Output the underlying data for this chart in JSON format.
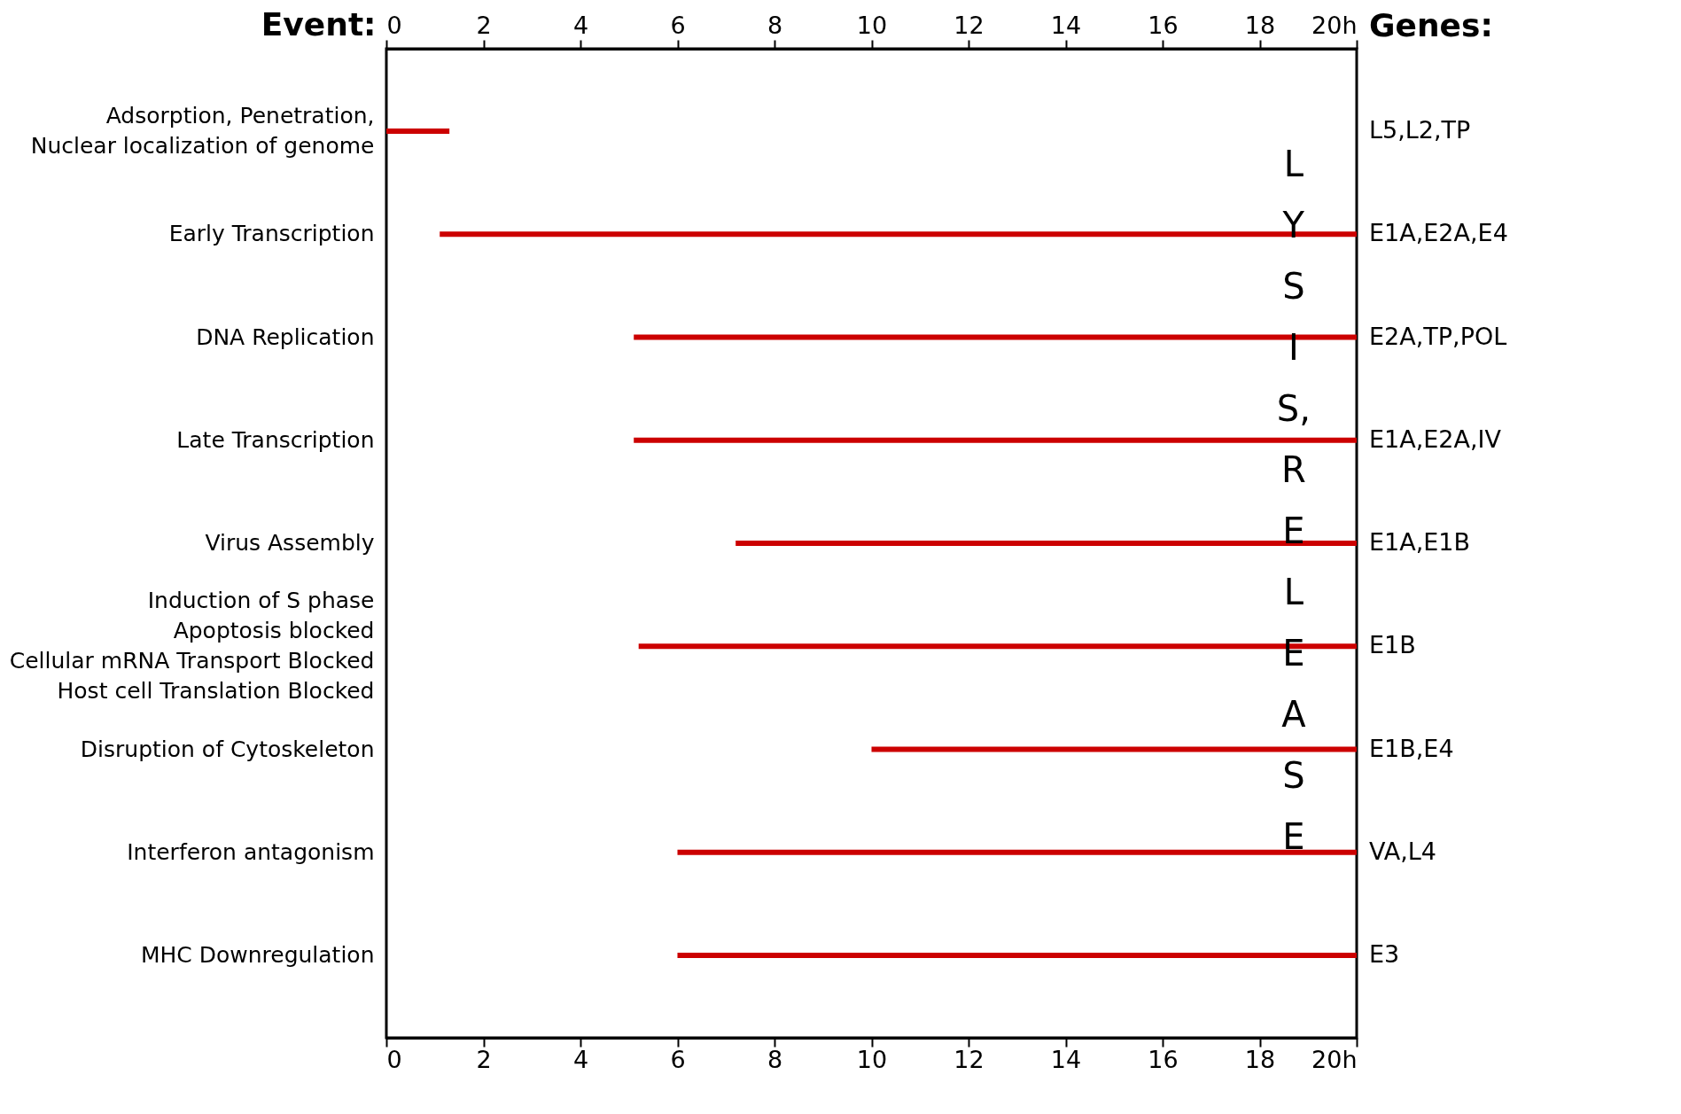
{
  "chart_data": {
    "type": "bar",
    "orientation": "horizontal",
    "ylabel": "Event:",
    "categories": [
      "Adsorption, Penetration,\nNuclear localization of genome",
      "Early Transcription",
      "DNA Replication",
      "Late Transcription",
      "Virus Assembly",
      "Induction of S phase\nApoptosis blocked\nCellular mRNA Transport Blocked\nHost cell Translation Blocked",
      "Disruption of Cytoskeleton",
      "Interferon antagonism",
      "MHC Downregulation"
    ],
    "base": [
      0,
      1.1,
      5.1,
      5.1,
      7.2,
      5.2,
      10,
      6,
      6
    ],
    "values": [
      1.3,
      18.9,
      14.9,
      14.9,
      12.8,
      14.8,
      10,
      14,
      14
    ],
    "color": "#cc0000",
    "xlim": [
      0,
      20
    ],
    "xticks": [
      0,
      2,
      4,
      6,
      8,
      10,
      12,
      14,
      16,
      18,
      {
        "value": 20,
        "label": "20h"
      }
    ],
    "x2lim": [
      0,
      20
    ],
    "x2ticks": [
      0,
      2,
      4,
      6,
      8,
      10,
      12,
      14,
      16,
      18,
      {
        "value": 20,
        "label": "20h"
      }
    ],
    "annotations": [
      "Genes:",
      "LYSIS, RELEASE",
      "L5,L2,TP",
      "E1A,E2A,E4",
      "E2A,TP,POL",
      "E1A,E2A,IV",
      "E1A,E1B",
      "E1B",
      "E1B,E4",
      "VA,L4",
      "E3"
    ]
  }
}
